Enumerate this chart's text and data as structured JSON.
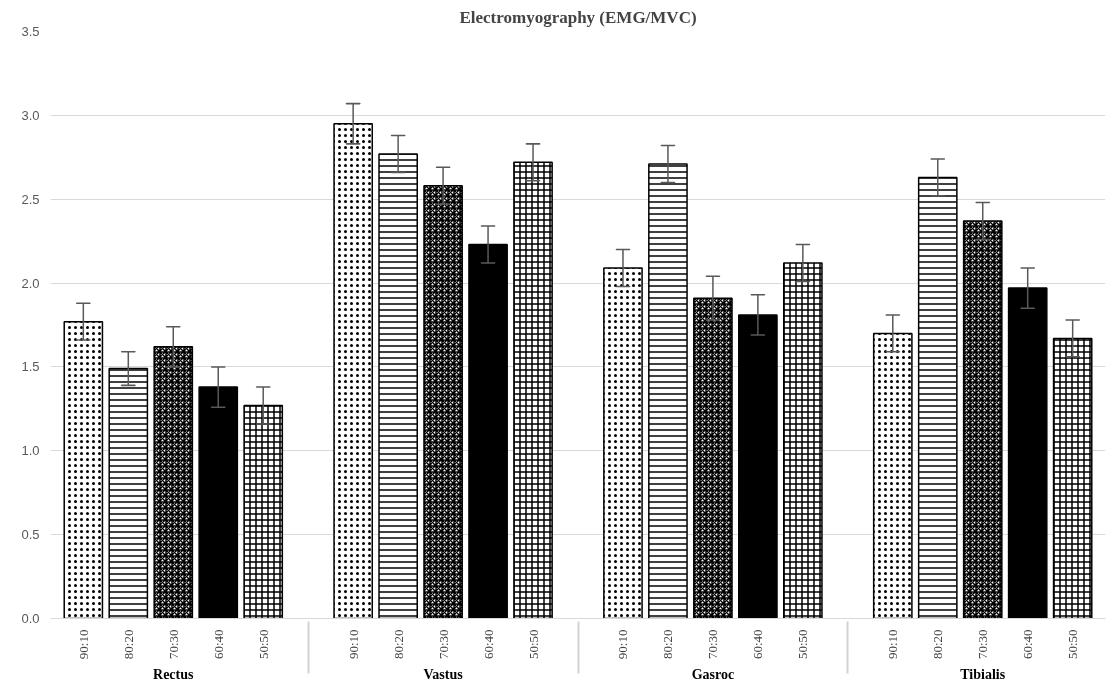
{
  "chart_data": {
    "type": "bar",
    "title": "Electromyography (EMG/MVC)",
    "categories": [
      "Rectus",
      "Vastus",
      "Gasroc",
      "Tibialis"
    ],
    "series": [
      {
        "name": "90:10",
        "color": "#000000",
        "values": [
          1.77,
          2.95,
          2.09,
          1.7
        ],
        "errors": [
          0.11,
          0.12,
          0.11,
          0.11
        ]
      },
      {
        "name": "80:20",
        "color": "#000000",
        "values": [
          1.49,
          2.77,
          2.71,
          2.63
        ],
        "errors": [
          0.1,
          0.11,
          0.11,
          0.11
        ]
      },
      {
        "name": "70:30",
        "color": "#000000",
        "values": [
          1.62,
          2.58,
          1.91,
          2.37
        ],
        "errors": [
          0.12,
          0.11,
          0.13,
          0.11
        ]
      },
      {
        "name": "60:40",
        "color": "#000000",
        "values": [
          1.38,
          2.23,
          1.81,
          1.97
        ],
        "errors": [
          0.12,
          0.11,
          0.12,
          0.12
        ]
      },
      {
        "name": "50:50",
        "color": "#000000",
        "values": [
          1.27,
          2.72,
          2.12,
          1.67
        ],
        "errors": [
          0.11,
          0.11,
          0.11,
          0.11
        ]
      }
    ],
    "ylim": [
      0,
      3.5
    ],
    "yticks": [
      {
        "value": 0,
        "label": "0.0"
      },
      0.5,
      {
        "value": 1,
        "label": "1.0"
      },
      1.5,
      {
        "value": 2,
        "label": "2.0"
      },
      2.5,
      {
        "value": 3,
        "label": "3.0"
      },
      3.5
    ],
    "grid": "y"
  }
}
